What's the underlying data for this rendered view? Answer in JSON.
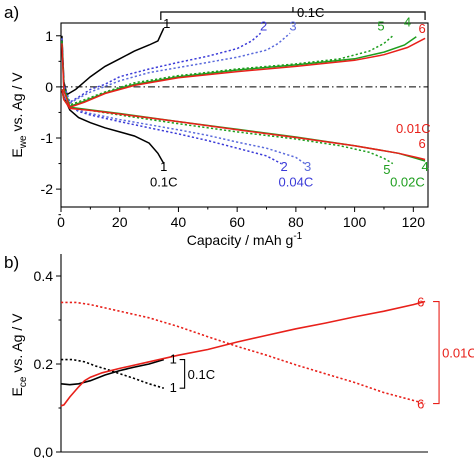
{
  "chart_data": [
    {
      "panel_label": "a)",
      "type": "line",
      "xlabel": "Capacity / mAh g",
      "xlabel_sup": "-1",
      "ylabel": "E",
      "ylabel_sub": "we",
      "ylabel_rest": " vs. Ag / V",
      "xlim": [
        0,
        125
      ],
      "ylim": [
        -2.35,
        1.25
      ],
      "xticks": [
        0,
        20,
        40,
        60,
        80,
        100,
        120
      ],
      "xtick_labels": [
        "0",
        "20",
        "40",
        "60",
        "80",
        "100",
        "120"
      ],
      "yticks": [
        1,
        0,
        -1,
        -2
      ],
      "ytick_labels": [
        "1",
        "0",
        "-1",
        "-2"
      ],
      "reference_line": 0,
      "bracket": {
        "label": "0.1C",
        "x": [
          34,
          124
        ],
        "cycles": [
          "1",
          "2",
          "3",
          "5",
          "4",
          "6"
        ]
      },
      "series": [
        {
          "name": "1",
          "rate": "0.1C",
          "color": "#000000",
          "dash": "solid",
          "charge": [
            [
              0.3,
              1.0
            ],
            [
              1,
              0.1
            ],
            [
              2,
              -0.15
            ],
            [
              5,
              -0.05
            ],
            [
              10,
              0.2
            ],
            [
              15,
              0.4
            ],
            [
              20,
              0.55
            ],
            [
              25,
              0.7
            ],
            [
              30,
              0.82
            ],
            [
              33,
              0.9
            ],
            [
              35,
              1.15
            ]
          ],
          "discharge": [
            [
              0.3,
              -0.05
            ],
            [
              1,
              -0.2
            ],
            [
              3,
              -0.45
            ],
            [
              6,
              -0.6
            ],
            [
              10,
              -0.7
            ],
            [
              15,
              -0.8
            ],
            [
              20,
              -0.88
            ],
            [
              25,
              -0.96
            ],
            [
              30,
              -1.1
            ],
            [
              33,
              -1.3
            ],
            [
              35,
              -1.5
            ]
          ]
        },
        {
          "name": "2",
          "rate": "0.04C",
          "color": "#3b3bd8",
          "dash": "dotted",
          "charge": [
            [
              0.3,
              0.95
            ],
            [
              1,
              0.05
            ],
            [
              3,
              -0.3
            ],
            [
              6,
              -0.2
            ],
            [
              10,
              -0.05
            ],
            [
              15,
              0.05
            ],
            [
              20,
              0.2
            ],
            [
              30,
              0.35
            ],
            [
              40,
              0.48
            ],
            [
              50,
              0.6
            ],
            [
              60,
              0.75
            ],
            [
              65,
              0.9
            ],
            [
              68,
              1.05
            ]
          ],
          "discharge": [
            [
              0.3,
              -0.05
            ],
            [
              1,
              -0.2
            ],
            [
              3,
              -0.38
            ],
            [
              6,
              -0.48
            ],
            [
              10,
              -0.55
            ],
            [
              20,
              -0.68
            ],
            [
              30,
              -0.8
            ],
            [
              40,
              -0.92
            ],
            [
              50,
              -1.05
            ],
            [
              60,
              -1.2
            ],
            [
              70,
              -1.35
            ],
            [
              75,
              -1.5
            ]
          ]
        },
        {
          "name": "3",
          "rate": "0.04C",
          "color": "#5b6bdc",
          "dash": "dotted",
          "charge": [
            [
              0.3,
              0.95
            ],
            [
              1,
              0.02
            ],
            [
              3,
              -0.32
            ],
            [
              6,
              -0.22
            ],
            [
              10,
              -0.1
            ],
            [
              20,
              0.12
            ],
            [
              30,
              0.28
            ],
            [
              40,
              0.38
            ],
            [
              50,
              0.48
            ],
            [
              60,
              0.58
            ],
            [
              70,
              0.72
            ],
            [
              74,
              0.85
            ],
            [
              78,
              1.05
            ]
          ],
          "discharge": [
            [
              0.3,
              -0.05
            ],
            [
              1,
              -0.2
            ],
            [
              3,
              -0.38
            ],
            [
              6,
              -0.46
            ],
            [
              10,
              -0.52
            ],
            [
              20,
              -0.64
            ],
            [
              30,
              -0.74
            ],
            [
              40,
              -0.84
            ],
            [
              50,
              -0.95
            ],
            [
              60,
              -1.08
            ],
            [
              70,
              -1.2
            ],
            [
              80,
              -1.38
            ],
            [
              83,
              -1.5
            ]
          ]
        },
        {
          "name": "5",
          "rate": "0.02C",
          "color": "#1e9e1e",
          "dash": "dotted",
          "charge": [
            [
              0.3,
              0.9
            ],
            [
              1,
              0.0
            ],
            [
              3,
              -0.35
            ],
            [
              8,
              -0.25
            ],
            [
              15,
              -0.1
            ],
            [
              25,
              0.08
            ],
            [
              40,
              0.22
            ],
            [
              60,
              0.35
            ],
            [
              80,
              0.45
            ],
            [
              95,
              0.55
            ],
            [
              105,
              0.7
            ],
            [
              110,
              0.85
            ],
            [
              113,
              1.0
            ]
          ],
          "discharge": [
            [
              0.3,
              -0.05
            ],
            [
              1,
              -0.25
            ],
            [
              3,
              -0.4
            ],
            [
              10,
              -0.46
            ],
            [
              20,
              -0.55
            ],
            [
              40,
              -0.72
            ],
            [
              60,
              -0.88
            ],
            [
              80,
              -1.02
            ],
            [
              95,
              -1.15
            ],
            [
              105,
              -1.28
            ],
            [
              110,
              -1.4
            ],
            [
              113,
              -1.5
            ]
          ]
        },
        {
          "name": "4",
          "rate": "0.02C",
          "color": "#1e9e1e",
          "dash": "solid",
          "charge": [
            [
              0.3,
              0.9
            ],
            [
              1,
              -0.05
            ],
            [
              3,
              -0.38
            ],
            [
              8,
              -0.28
            ],
            [
              15,
              -0.12
            ],
            [
              25,
              0.05
            ],
            [
              40,
              0.2
            ],
            [
              60,
              0.33
            ],
            [
              80,
              0.43
            ],
            [
              100,
              0.55
            ],
            [
              110,
              0.68
            ],
            [
              117,
              0.82
            ],
            [
              121,
              0.98
            ]
          ],
          "discharge": [
            [
              0.3,
              -0.05
            ],
            [
              1,
              -0.25
            ],
            [
              3,
              -0.4
            ],
            [
              10,
              -0.45
            ],
            [
              20,
              -0.52
            ],
            [
              40,
              -0.68
            ],
            [
              60,
              -0.83
            ],
            [
              80,
              -0.98
            ],
            [
              100,
              -1.15
            ],
            [
              115,
              -1.3
            ],
            [
              121,
              -1.4
            ],
            [
              124,
              -1.45
            ]
          ]
        },
        {
          "name": "6",
          "rate": "0.01C",
          "color": "#e8201a",
          "dash": "solid",
          "charge": [
            [
              0.3,
              0.85
            ],
            [
              1,
              -0.08
            ],
            [
              3,
              -0.4
            ],
            [
              8,
              -0.3
            ],
            [
              15,
              -0.13
            ],
            [
              25,
              0.03
            ],
            [
              40,
              0.18
            ],
            [
              60,
              0.3
            ],
            [
              80,
              0.4
            ],
            [
              100,
              0.52
            ],
            [
              110,
              0.63
            ],
            [
              118,
              0.77
            ],
            [
              124,
              0.95
            ]
          ],
          "discharge": [
            [
              0.3,
              -0.05
            ],
            [
              1,
              -0.25
            ],
            [
              3,
              -0.42
            ],
            [
              10,
              -0.46
            ],
            [
              20,
              -0.53
            ],
            [
              40,
              -0.68
            ],
            [
              60,
              -0.84
            ],
            [
              80,
              -0.99
            ],
            [
              100,
              -1.15
            ],
            [
              115,
              -1.3
            ],
            [
              121,
              -1.38
            ],
            [
              124,
              -1.42
            ]
          ]
        }
      ],
      "annotations": [
        {
          "text": "1",
          "color": "#000000",
          "anchor": [
            36,
            1.15
          ],
          "side": "top"
        },
        {
          "text": "2",
          "color": "#3b3bd8",
          "anchor": [
            69,
            1.1
          ],
          "side": "top"
        },
        {
          "text": "3",
          "color": "#5b6bdc",
          "anchor": [
            79,
            1.1
          ],
          "side": "top"
        },
        {
          "text": "5",
          "color": "#1e9e1e",
          "anchor": [
            109,
            1.1
          ],
          "side": "top"
        },
        {
          "text": "4",
          "color": "#1e9e1e",
          "anchor": [
            118,
            1.18
          ],
          "side": "top"
        },
        {
          "text": "6",
          "color": "#e8201a",
          "anchor": [
            123,
            1.05
          ],
          "side": "top"
        },
        {
          "text": "1",
          "color": "#000000",
          "anchor": [
            35,
            -1.65
          ],
          "side": "bottom"
        },
        {
          "text": "0.1C",
          "color": "#000000",
          "anchor": [
            35,
            -1.95
          ],
          "side": "bottom"
        },
        {
          "text": "2",
          "color": "#3b3bd8",
          "anchor": [
            76,
            -1.65
          ],
          "side": "bottom"
        },
        {
          "text": "3",
          "color": "#5b6bdc",
          "anchor": [
            84,
            -1.65
          ],
          "side": "bottom"
        },
        {
          "text": "0.04C",
          "color": "#3b3bd8",
          "anchor": [
            80,
            -1.95
          ],
          "side": "bottom"
        },
        {
          "text": "5",
          "color": "#1e9e1e",
          "anchor": [
            111,
            -1.7
          ],
          "side": "bottom"
        },
        {
          "text": "4",
          "color": "#1e9e1e",
          "anchor": [
            124,
            -1.65
          ],
          "side": "bottom"
        },
        {
          "text": "0.02C",
          "color": "#1e9e1e",
          "anchor": [
            118,
            -1.95
          ],
          "side": "bottom"
        },
        {
          "text": "0.01C",
          "color": "#e8201a",
          "anchor": [
            120,
            -0.9
          ],
          "side": "right"
        },
        {
          "text": "6",
          "color": "#e8201a",
          "anchor": [
            123,
            -1.2
          ],
          "side": "right"
        }
      ]
    },
    {
      "panel_label": "b)",
      "type": "line",
      "ylabel": "E",
      "ylabel_sub": "ce",
      "ylabel_rest": " vs. Ag / V",
      "xlim": [
        0,
        125
      ],
      "ylim": [
        0.0,
        0.45
      ],
      "yticks": [
        0.4,
        0.2,
        0.0
      ],
      "ytick_labels": [
        "0.4",
        "0.2",
        "0,0"
      ],
      "bracket_black": {
        "label": "0.1C",
        "cycles": [
          "1",
          "1"
        ]
      },
      "bracket_red": {
        "label": "0.01C",
        "cycles": [
          "6",
          "6"
        ]
      },
      "series": [
        {
          "name": "1",
          "rate": "0.1C",
          "color": "#000000",
          "dash": "solid",
          "points": [
            [
              0,
              0.155
            ],
            [
              3,
              0.153
            ],
            [
              6,
              0.155
            ],
            [
              10,
              0.162
            ],
            [
              15,
              0.175
            ],
            [
              20,
              0.185
            ],
            [
              25,
              0.193
            ],
            [
              30,
              0.2
            ],
            [
              35,
              0.21
            ]
          ]
        },
        {
          "name": "1",
          "rate": "0.1C",
          "color": "#000000",
          "dash": "dotted",
          "points": [
            [
              0,
              0.21
            ],
            [
              4,
              0.21
            ],
            [
              8,
              0.205
            ],
            [
              12,
              0.195
            ],
            [
              16,
              0.187
            ],
            [
              20,
              0.178
            ],
            [
              25,
              0.167
            ],
            [
              30,
              0.155
            ],
            [
              35,
              0.145
            ]
          ]
        },
        {
          "name": "6",
          "rate": "0.01C",
          "color": "#e8201a",
          "dash": "solid",
          "points": [
            [
              0,
              0.105
            ],
            [
              1,
              0.107
            ],
            [
              3,
              0.125
            ],
            [
              6,
              0.148
            ],
            [
              8,
              0.162
            ],
            [
              10,
              0.17
            ],
            [
              14,
              0.18
            ],
            [
              20,
              0.19
            ],
            [
              30,
              0.205
            ],
            [
              40,
              0.22
            ],
            [
              50,
              0.233
            ],
            [
              60,
              0.25
            ],
            [
              70,
              0.265
            ],
            [
              80,
              0.28
            ],
            [
              90,
              0.293
            ],
            [
              100,
              0.307
            ],
            [
              110,
              0.32
            ],
            [
              120,
              0.335
            ],
            [
              124,
              0.342
            ]
          ]
        },
        {
          "name": "6",
          "rate": "0.01C",
          "color": "#e8201a",
          "dash": "dotted",
          "points": [
            [
              0,
              0.34
            ],
            [
              5,
              0.34
            ],
            [
              10,
              0.335
            ],
            [
              20,
              0.32
            ],
            [
              30,
              0.305
            ],
            [
              40,
              0.285
            ],
            [
              50,
              0.262
            ],
            [
              60,
              0.24
            ],
            [
              70,
              0.22
            ],
            [
              80,
              0.198
            ],
            [
              90,
              0.178
            ],
            [
              100,
              0.158
            ],
            [
              110,
              0.135
            ],
            [
              124,
              0.11
            ]
          ]
        }
      ]
    }
  ]
}
